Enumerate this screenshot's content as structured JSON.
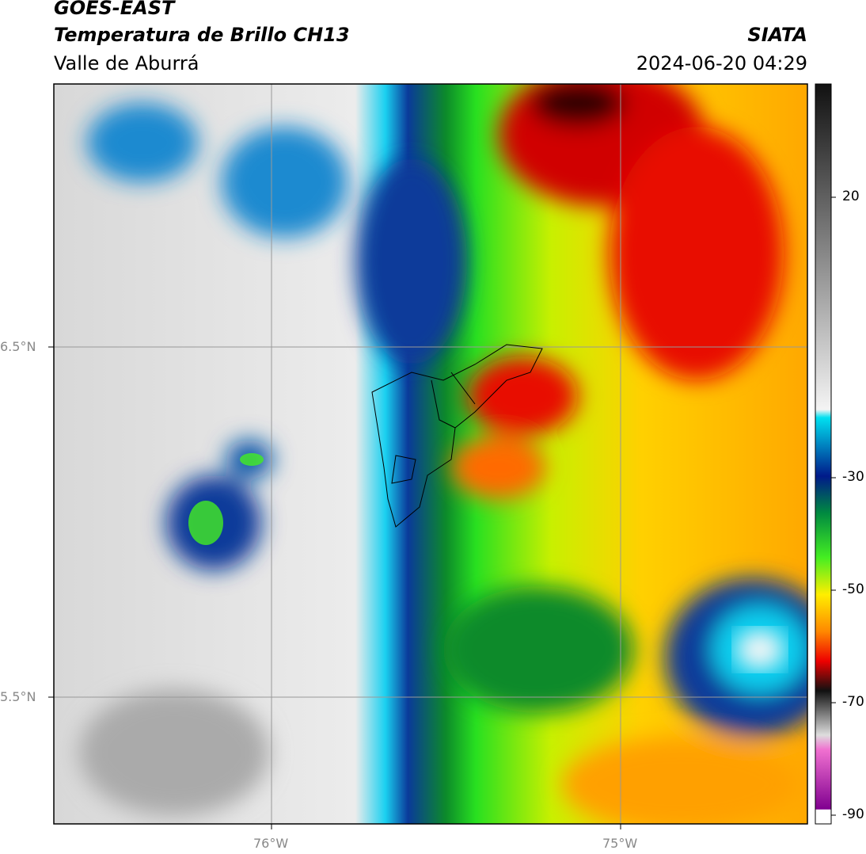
{
  "header": {
    "title": "GOES-EAST",
    "subtitle": "Temperatura de Brillo CH13",
    "region": "Valle de Aburrá",
    "agency": "SIATA",
    "timestamp": "2024-06-20 04:29"
  },
  "map": {
    "lon_labels": [
      "76°W",
      "75°W"
    ],
    "lat_labels": [
      "6.5°N",
      "5.5°N"
    ]
  },
  "colorbar": {
    "tick_labels": [
      "20",
      "-30",
      "-50",
      "-70",
      "-90"
    ]
  }
}
